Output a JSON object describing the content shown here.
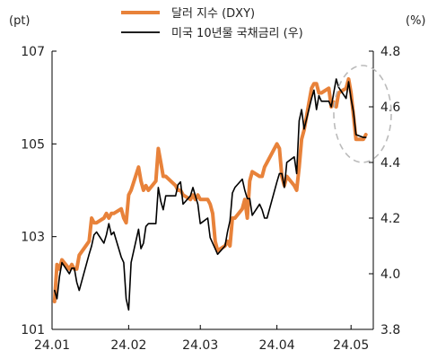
{
  "chart_data": {
    "type": "line",
    "left_axis_unit": "(pt)",
    "right_axis_unit": "(%)",
    "x_ticks": [
      "24.01",
      "24.02",
      "24.03",
      "24.04",
      "24.05"
    ],
    "y_left": {
      "min": 101,
      "max": 107,
      "ticks": [
        "107",
        "105",
        "103",
        "101"
      ]
    },
    "y_right": {
      "min": 3.8,
      "max": 4.8,
      "ticks": [
        "4.8",
        "4.6",
        "4.4",
        "4.2",
        "4.0",
        "3.8"
      ]
    },
    "grid": false,
    "legend_position": "top-center",
    "colors": {
      "dxy": "#E8823A",
      "yield": "#000000",
      "highlight": "#BBBBBB"
    },
    "series": [
      {
        "name": "달러 지수 (DXY)",
        "axis": "left",
        "x": [
          "2024-01-02",
          "2024-01-03",
          "2024-01-04",
          "2024-01-05",
          "2024-01-08",
          "2024-01-09",
          "2024-01-10",
          "2024-01-11",
          "2024-01-12",
          "2024-01-16",
          "2024-01-17",
          "2024-01-18",
          "2024-01-19",
          "2024-01-22",
          "2024-01-23",
          "2024-01-24",
          "2024-01-25",
          "2024-01-26",
          "2024-01-29",
          "2024-01-30",
          "2024-01-31",
          "2024-02-01",
          "2024-02-02",
          "2024-02-05",
          "2024-02-06",
          "2024-02-07",
          "2024-02-08",
          "2024-02-09",
          "2024-02-12",
          "2024-02-13",
          "2024-02-14",
          "2024-02-15",
          "2024-02-16",
          "2024-02-20",
          "2024-02-21",
          "2024-02-22",
          "2024-02-23",
          "2024-02-26",
          "2024-02-27",
          "2024-02-28",
          "2024-02-29",
          "2024-03-01",
          "2024-03-04",
          "2024-03-05",
          "2024-03-06",
          "2024-03-07",
          "2024-03-08",
          "2024-03-11",
          "2024-03-12",
          "2024-03-13",
          "2024-03-14",
          "2024-03-15",
          "2024-03-18",
          "2024-03-19",
          "2024-03-20",
          "2024-03-21",
          "2024-03-22",
          "2024-03-25",
          "2024-03-26",
          "2024-03-27",
          "2024-03-28",
          "2024-04-01",
          "2024-04-02",
          "2024-04-03",
          "2024-04-04",
          "2024-04-05",
          "2024-04-08",
          "2024-04-09",
          "2024-04-10",
          "2024-04-11",
          "2024-04-12",
          "2024-04-15",
          "2024-04-16",
          "2024-04-17",
          "2024-04-18",
          "2024-04-19",
          "2024-04-22",
          "2024-04-23",
          "2024-04-24",
          "2024-04-25",
          "2024-04-26",
          "2024-04-29",
          "2024-04-30",
          "2024-05-01",
          "2024-05-02",
          "2024-05-03",
          "2024-05-06",
          "2024-05-07"
        ],
        "values": [
          101.6,
          102.4,
          102.3,
          102.5,
          102.3,
          102.4,
          102.3,
          102.3,
          102.6,
          102.9,
          103.4,
          103.3,
          103.3,
          103.4,
          103.5,
          103.4,
          103.5,
          103.5,
          103.6,
          103.4,
          103.3,
          103.9,
          104.0,
          104.5,
          104.2,
          104.0,
          104.1,
          104.0,
          104.2,
          104.9,
          104.6,
          104.3,
          104.3,
          104.1,
          104.0,
          104.0,
          103.9,
          103.8,
          103.9,
          103.8,
          103.9,
          103.8,
          103.8,
          103.7,
          103.5,
          102.9,
          102.7,
          102.8,
          102.9,
          102.8,
          103.4,
          103.4,
          103.6,
          103.8,
          103.4,
          104.2,
          104.4,
          104.3,
          104.3,
          104.5,
          104.6,
          105.0,
          104.9,
          104.3,
          104.1,
          104.3,
          104.1,
          104.0,
          104.5,
          105.1,
          105.3,
          106.2,
          106.3,
          106.3,
          106.1,
          106.1,
          106.2,
          105.8,
          105.9,
          105.8,
          106.1,
          106.2,
          106.4,
          106.1,
          105.6,
          105.1,
          105.1,
          105.2
        ]
      },
      {
        "name": "미국 10년물 국채금리 (우)",
        "axis": "right",
        "x": [
          "2024-01-02",
          "2024-01-03",
          "2024-01-04",
          "2024-01-05",
          "2024-01-08",
          "2024-01-09",
          "2024-01-10",
          "2024-01-11",
          "2024-01-12",
          "2024-01-16",
          "2024-01-17",
          "2024-01-18",
          "2024-01-19",
          "2024-01-22",
          "2024-01-23",
          "2024-01-24",
          "2024-01-25",
          "2024-01-26",
          "2024-01-29",
          "2024-01-30",
          "2024-01-31",
          "2024-02-01",
          "2024-02-02",
          "2024-02-05",
          "2024-02-06",
          "2024-02-07",
          "2024-02-08",
          "2024-02-09",
          "2024-02-12",
          "2024-02-13",
          "2024-02-14",
          "2024-02-15",
          "2024-02-16",
          "2024-02-20",
          "2024-02-21",
          "2024-02-22",
          "2024-02-23",
          "2024-02-26",
          "2024-02-27",
          "2024-02-28",
          "2024-02-29",
          "2024-03-01",
          "2024-03-04",
          "2024-03-05",
          "2024-03-06",
          "2024-03-07",
          "2024-03-08",
          "2024-03-11",
          "2024-03-12",
          "2024-03-13",
          "2024-03-14",
          "2024-03-15",
          "2024-03-18",
          "2024-03-19",
          "2024-03-20",
          "2024-03-21",
          "2024-03-22",
          "2024-03-25",
          "2024-03-26",
          "2024-03-27",
          "2024-03-28",
          "2024-04-01",
          "2024-04-02",
          "2024-04-03",
          "2024-04-04",
          "2024-04-05",
          "2024-04-08",
          "2024-04-09",
          "2024-04-10",
          "2024-04-11",
          "2024-04-12",
          "2024-04-15",
          "2024-04-16",
          "2024-04-17",
          "2024-04-18",
          "2024-04-19",
          "2024-04-22",
          "2024-04-23",
          "2024-04-24",
          "2024-04-25",
          "2024-04-26",
          "2024-04-29",
          "2024-04-30",
          "2024-05-01",
          "2024-05-02",
          "2024-05-03",
          "2024-05-06",
          "2024-05-07"
        ],
        "values": [
          3.94,
          3.91,
          3.99,
          4.04,
          4.0,
          4.02,
          4.02,
          3.97,
          3.94,
          4.07,
          4.1,
          4.14,
          4.15,
          4.11,
          4.14,
          4.18,
          4.14,
          4.15,
          4.06,
          4.04,
          3.91,
          3.87,
          4.04,
          4.16,
          4.09,
          4.11,
          4.17,
          4.18,
          4.18,
          4.31,
          4.26,
          4.23,
          4.28,
          4.28,
          4.32,
          4.33,
          4.25,
          4.28,
          4.31,
          4.28,
          4.25,
          4.18,
          4.2,
          4.13,
          4.11,
          4.09,
          4.07,
          4.1,
          4.15,
          4.19,
          4.29,
          4.31,
          4.34,
          4.3,
          4.27,
          4.27,
          4.21,
          4.25,
          4.23,
          4.2,
          4.2,
          4.33,
          4.36,
          4.36,
          4.31,
          4.4,
          4.42,
          4.36,
          4.55,
          4.59,
          4.52,
          4.63,
          4.66,
          4.59,
          4.64,
          4.62,
          4.62,
          4.6,
          4.65,
          4.7,
          4.67,
          4.63,
          4.69,
          4.63,
          4.58,
          4.5,
          4.49,
          4.49
        ]
      }
    ]
  }
}
